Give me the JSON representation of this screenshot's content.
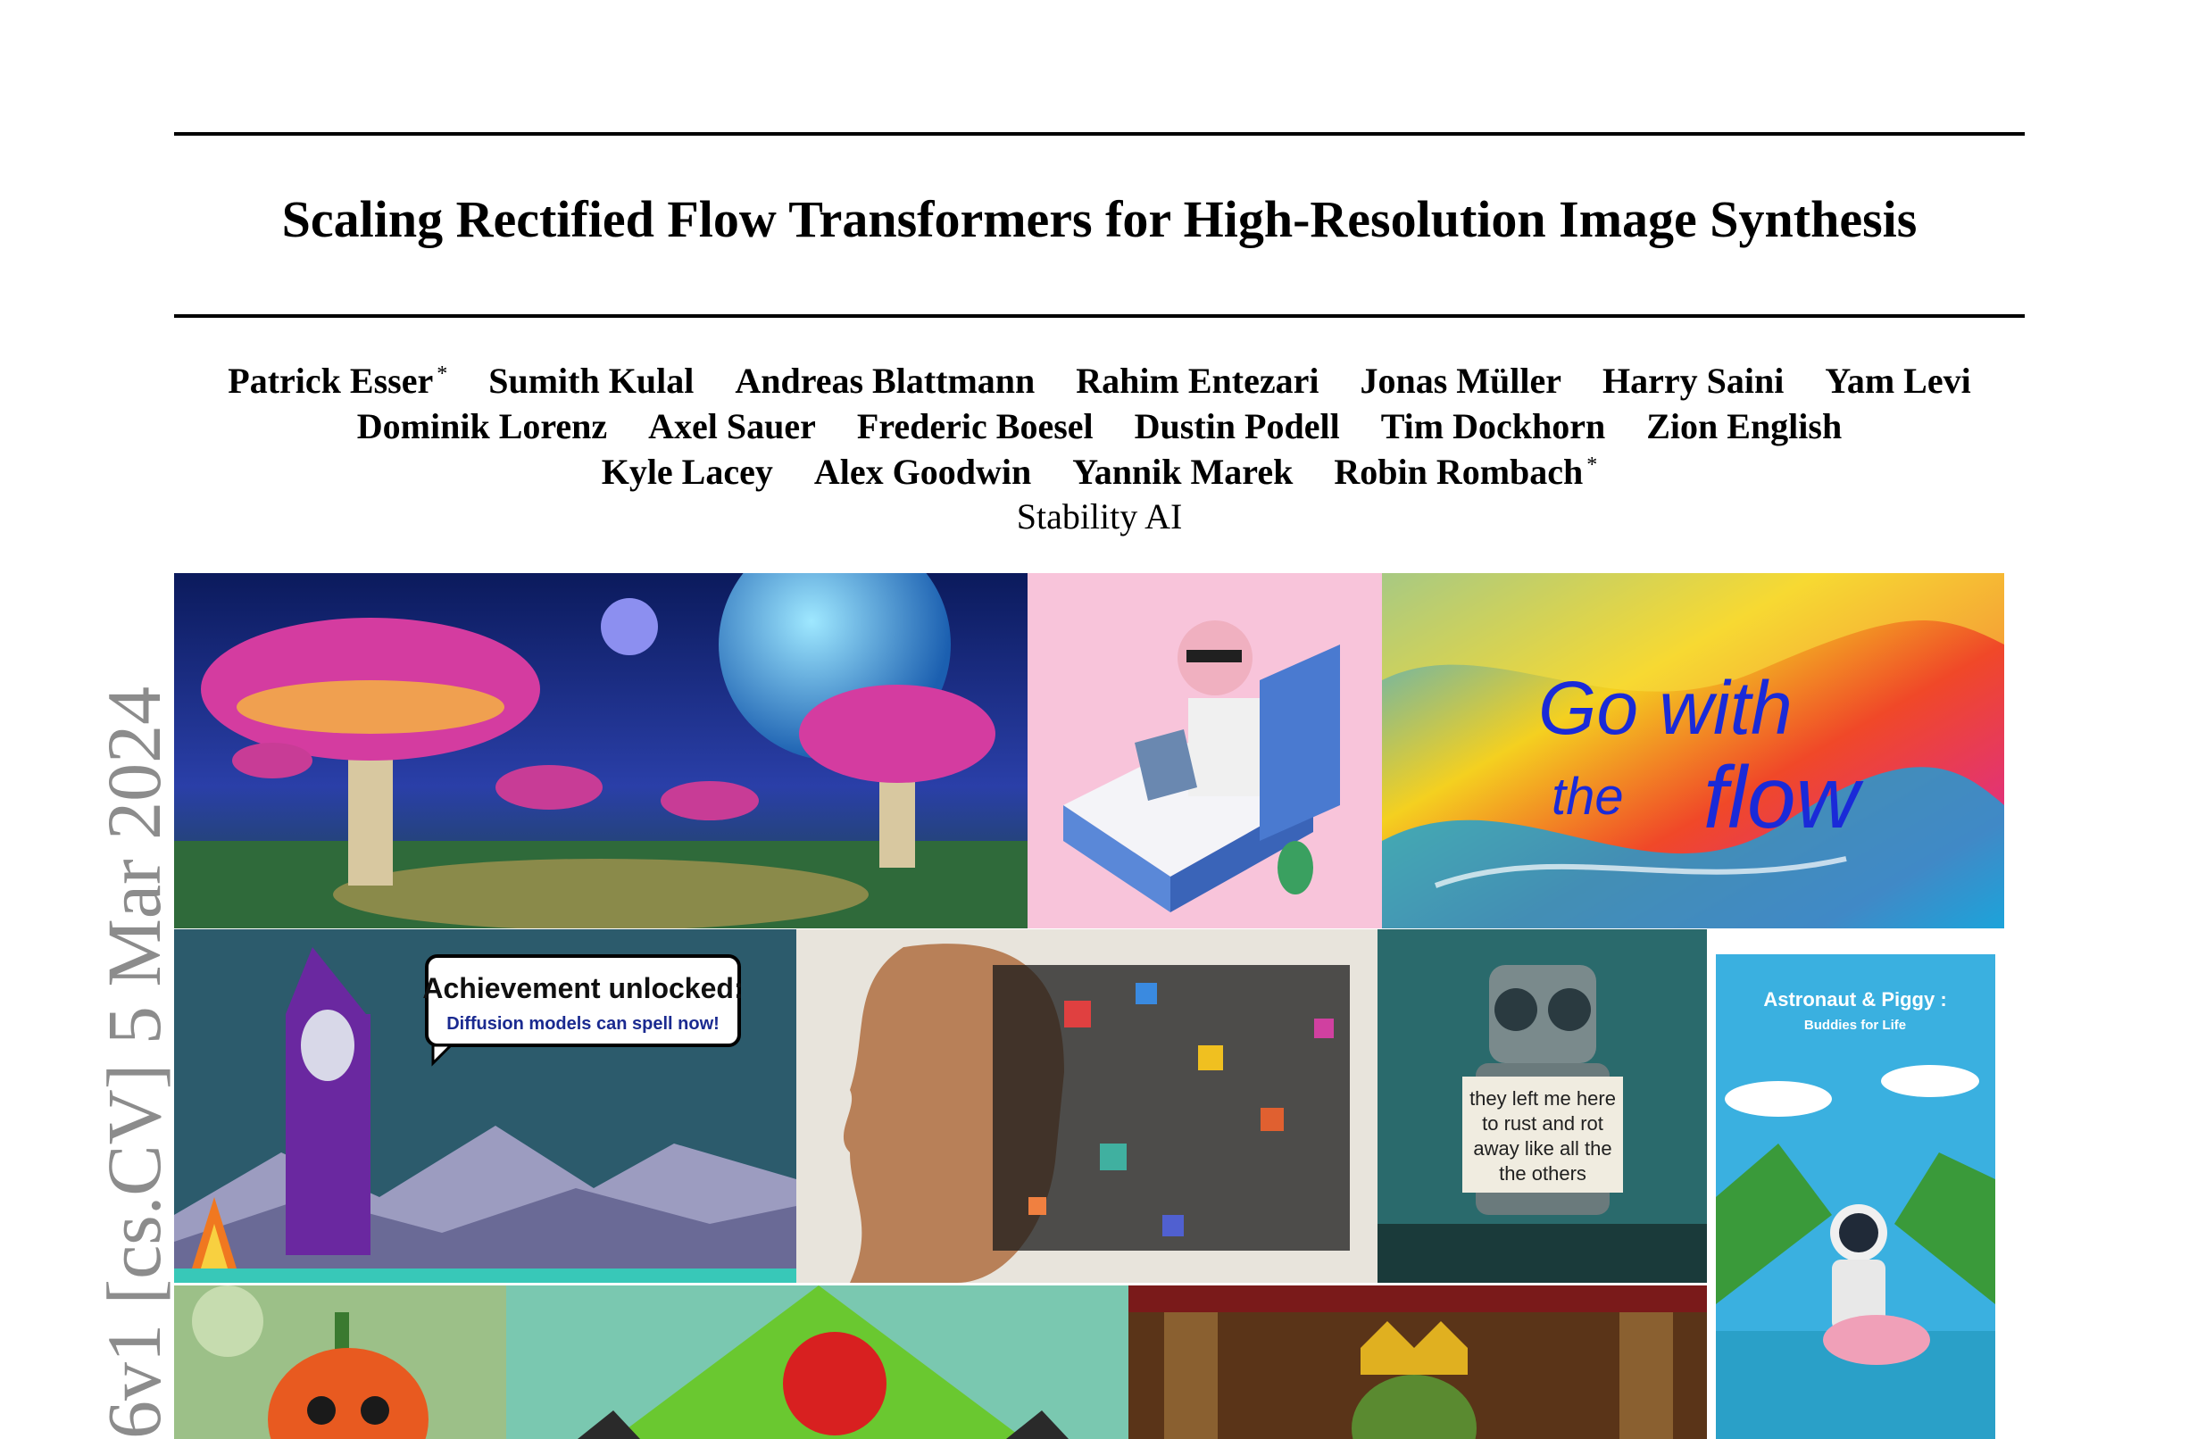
{
  "paper": {
    "title": "Scaling Rectified Flow Transformers for High-Resolution Image Synthesis",
    "authors_line1": [
      "Patrick Esser",
      "Sumith Kulal",
      "Andreas Blattmann",
      "Rahim Entezari",
      "Jonas Müller",
      "Harry Saini",
      "Yam Levi"
    ],
    "authors_line2": [
      "Dominik Lorenz",
      "Axel Sauer",
      "Frederic Boesel",
      "Dustin Podell",
      "Tim Dockhorn",
      "Zion English"
    ],
    "authors_line3": [
      "Kyle Lacey",
      "Alex Goodwin",
      "Yannik Marek",
      "Robin Rombach"
    ],
    "star": "*",
    "affiliation": "Stability AI",
    "arxiv_stamp": "6v1  [cs.CV]  5 Mar 2024"
  },
  "images": {
    "go_with": "Go with",
    "the": "the",
    "flow": "flow",
    "achievement_title": "Achievement unlocked:",
    "achievement_sub": "Diffusion models can spell now!",
    "robot_sign": [
      "they left me here",
      "to rust and rot",
      "away like all the",
      "the others"
    ],
    "poster_title": "Astronaut & Piggy :",
    "poster_sub": "Buddies for Life"
  }
}
